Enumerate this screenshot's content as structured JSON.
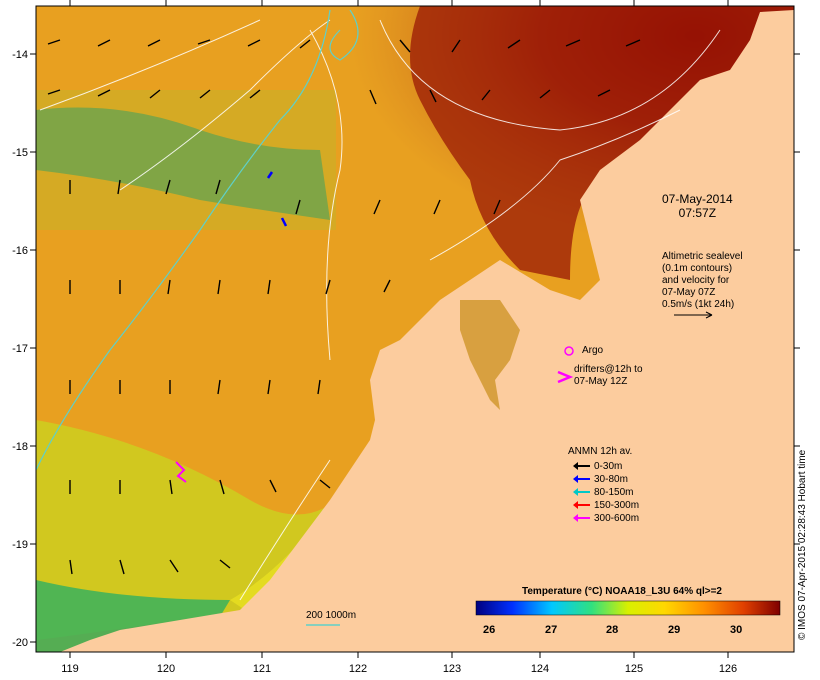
{
  "map": {
    "lat_ticks": [
      "-14",
      "-15",
      "-16",
      "-17",
      "-18",
      "-19",
      "-20"
    ],
    "lon_ticks": [
      "119",
      "120",
      "121",
      "122",
      "123",
      "124",
      "125",
      "126"
    ],
    "datetime_line1": "07-May-2014",
    "datetime_line2": "07:57Z",
    "altimetry_lines": [
      "Altimetric sealevel",
      "(0.1m contours)",
      "and velocity for",
      "07-May 07Z",
      "0.5m/s (1kt 24h)"
    ],
    "argo_label": "Argo",
    "drifters_lines": [
      "drifters@12h to",
      "07-May 12Z"
    ],
    "depth_contour_label": "200  1000m",
    "anmn": {
      "title": "ANMN 12h av.",
      "items": [
        {
          "label": "0-30m",
          "color": "#000000"
        },
        {
          "label": "30-80m",
          "color": "#0000ff"
        },
        {
          "label": "80-150m",
          "color": "#00c8c8"
        },
        {
          "label": "150-300m",
          "color": "#ff0000"
        },
        {
          "label": "300-600m",
          "color": "#ff00ff"
        }
      ]
    },
    "colorbar": {
      "title": "Temperature (°C) NOAA18_L3U 64% ql>=2",
      "ticks": [
        "26",
        "27",
        "28",
        "29",
        "30"
      ]
    },
    "credit": "© IMOS 07-Apr-2015 02:28:43 Hobart time",
    "colors": {
      "land": "#fccc9e",
      "warm": "#8b0000",
      "cool": "#1a33cc",
      "contour": "#5fd0c8"
    }
  }
}
